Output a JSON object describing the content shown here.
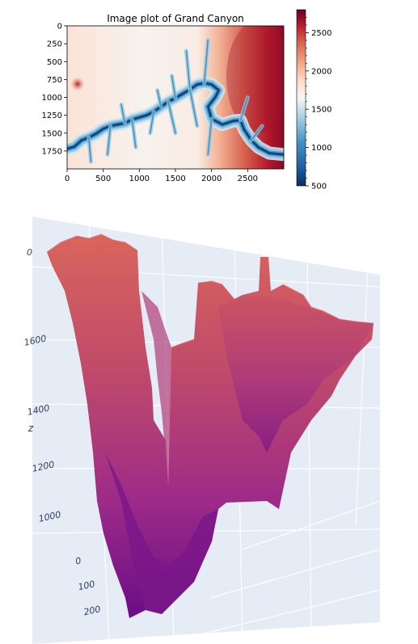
{
  "chart_data": [
    {
      "type": "heatmap",
      "title": "Image plot of Grand Canyon",
      "xlabel": "",
      "ylabel": "",
      "xlim": [
        0,
        3000
      ],
      "ylim": [
        2000,
        0
      ],
      "x_ticks": [
        "0",
        "500",
        "1000",
        "1500",
        "2000",
        "2500"
      ],
      "x_tick_values": [
        0,
        500,
        1000,
        1500,
        2000,
        2500
      ],
      "y_ticks": [
        "0",
        "250",
        "500",
        "750",
        "1000",
        "1250",
        "1500",
        "1750"
      ],
      "y_tick_values": [
        0,
        250,
        500,
        750,
        1000,
        1250,
        1500,
        1750
      ],
      "colormap": "RdBu_r",
      "colorbar": {
        "range": [
          500,
          2800
        ],
        "ticks": [
          "500",
          "1000",
          "1500",
          "2000",
          "2500"
        ],
        "tick_values": [
          500,
          1000,
          1500,
          2000,
          2500
        ]
      },
      "canyon_path": [
        [
          0,
          1720
        ],
        [
          100,
          1690
        ],
        [
          200,
          1600
        ],
        [
          300,
          1560
        ],
        [
          400,
          1510
        ],
        [
          500,
          1440
        ],
        [
          600,
          1400
        ],
        [
          700,
          1380
        ],
        [
          800,
          1360
        ],
        [
          900,
          1310
        ],
        [
          1000,
          1280
        ],
        [
          1100,
          1250
        ],
        [
          1200,
          1200
        ],
        [
          1300,
          1130
        ],
        [
          1400,
          1060
        ],
        [
          1500,
          1010
        ],
        [
          1600,
          950
        ],
        [
          1700,
          890
        ],
        [
          1800,
          820
        ],
        [
          1900,
          800
        ],
        [
          2000,
          820
        ],
        [
          2100,
          900
        ],
        [
          2050,
          1000
        ],
        [
          1950,
          1130
        ],
        [
          2000,
          1300
        ],
        [
          2150,
          1380
        ],
        [
          2300,
          1330
        ],
        [
          2400,
          1320
        ],
        [
          2450,
          1450
        ],
        [
          2550,
          1600
        ],
        [
          2650,
          1700
        ],
        [
          2800,
          1780
        ],
        [
          3000,
          1800
        ]
      ],
      "accent_colors": {
        "low": "#053061",
        "mid": "#f7f7f7",
        "high": "#67001f"
      }
    },
    {
      "type": "surface",
      "zlabel": "z",
      "z_ticks": [
        "1600",
        "1400",
        "1200",
        "1000"
      ],
      "z_tick_values": [
        1600,
        1400,
        1200,
        1000
      ],
      "axis_ticks": [
        "0",
        "100",
        "200"
      ],
      "colorscale": [
        "#6b0d87",
        "#9c2a88",
        "#c04b6a",
        "#d9655c"
      ],
      "background": "#e5ecf6"
    }
  ]
}
